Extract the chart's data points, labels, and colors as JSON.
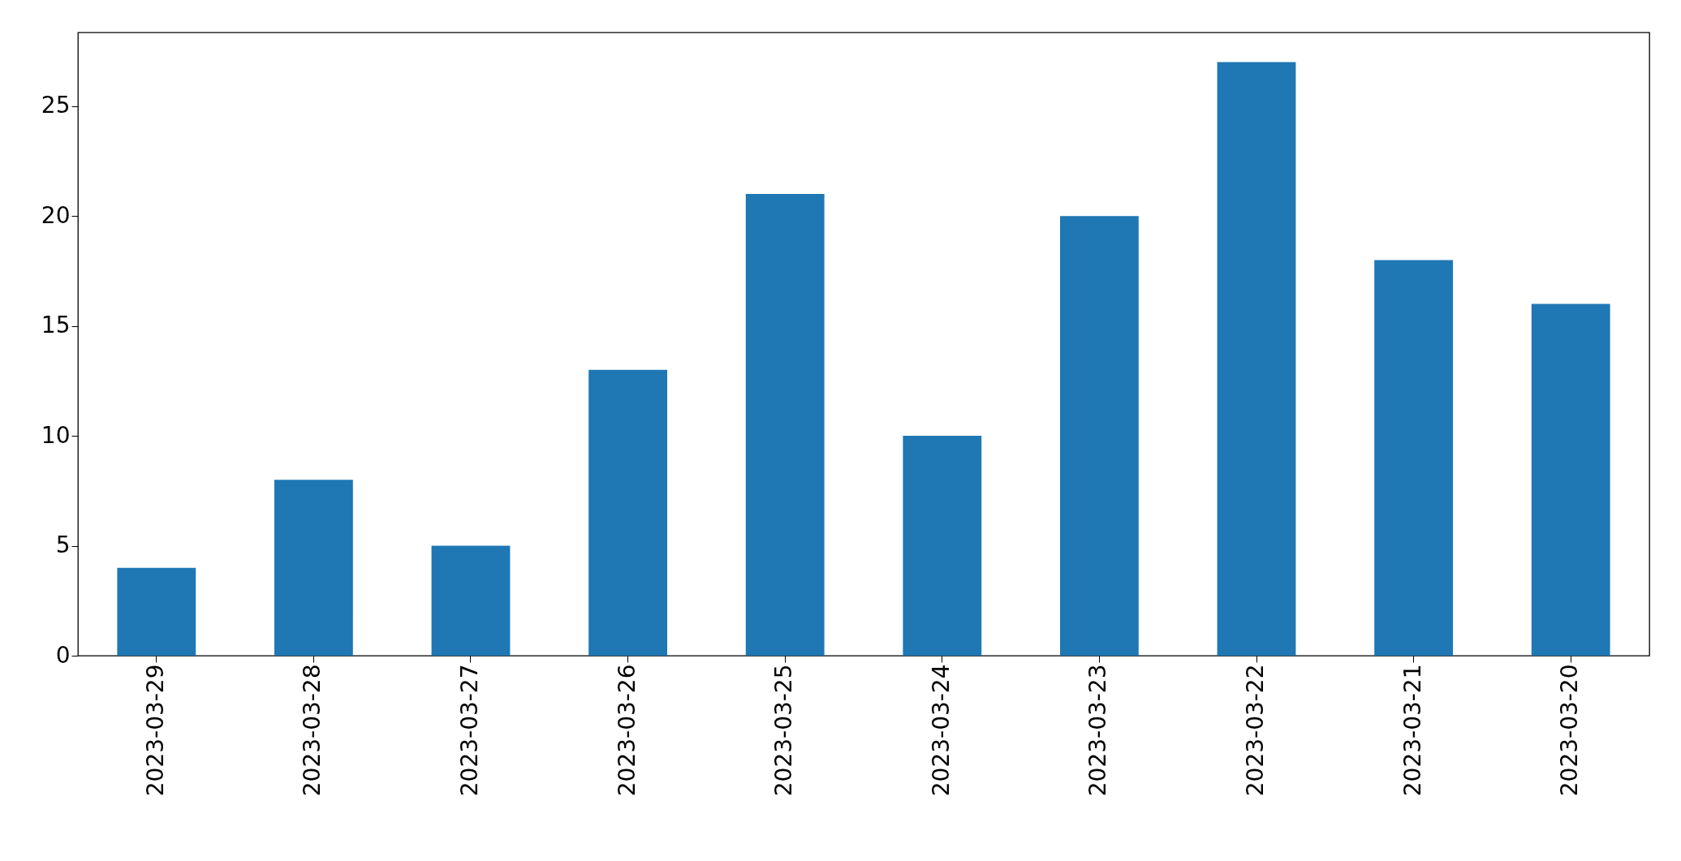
{
  "chart_data": {
    "type": "bar",
    "categories": [
      "2023-03-29",
      "2023-03-28",
      "2023-03-27",
      "2023-03-26",
      "2023-03-25",
      "2023-03-24",
      "2023-03-23",
      "2023-03-22",
      "2023-03-21",
      "2023-03-20"
    ],
    "values": [
      4,
      8,
      5,
      13,
      21,
      10,
      20,
      27,
      18,
      16
    ],
    "color": "#1f77b4",
    "ylim": [
      0,
      28.35
    ],
    "yticks": [
      0,
      5,
      10,
      15,
      20,
      25
    ],
    "grid": false
  }
}
